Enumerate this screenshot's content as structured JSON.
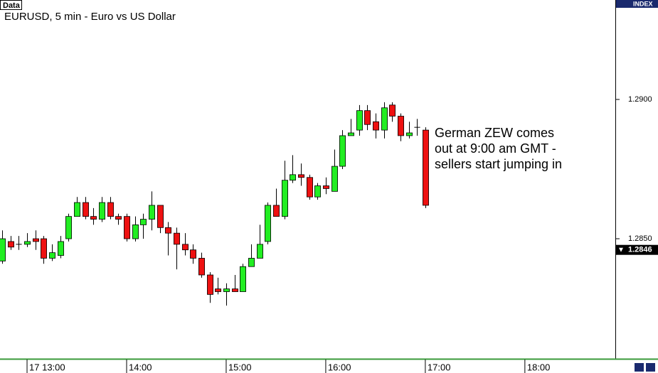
{
  "chart_data": {
    "type": "candlestick",
    "title": "EURUSD, 5 min - Euro vs US Dollar",
    "panel_label": "Data",
    "index_label": "INDEX",
    "annotation": [
      "German ZEW comes",
      "out at 9:00 am GMT -",
      "sellers start jumping in"
    ],
    "up_color": "#22ee22",
    "down_color": "#ee1111",
    "open": [
      1.2842,
      1.2849,
      1.2848,
      1.2848,
      1.285,
      1.285,
      1.2843,
      1.2844,
      1.285,
      1.2858,
      1.2863,
      1.2858,
      1.2857,
      1.2863,
      1.2858,
      1.2858,
      1.285,
      1.2855,
      1.2857,
      1.2862,
      1.2854,
      1.2852,
      1.2848,
      1.2846,
      1.2843,
      1.2837,
      1.2832,
      1.2831,
      1.2832,
      1.2831,
      1.284,
      1.2843,
      1.2849,
      1.2862,
      1.2858,
      1.2871,
      1.2873,
      1.2872,
      1.2865,
      1.2869,
      1.2867,
      1.2876,
      1.2887,
      1.2889,
      1.2896,
      1.2892,
      1.2889,
      1.2898,
      1.2894,
      1.2887,
      1.289,
      1.2889
    ],
    "high": [
      1.2853,
      1.2851,
      1.2851,
      1.2852,
      1.2853,
      1.2851,
      1.2848,
      1.2851,
      1.2859,
      1.2865,
      1.2865,
      1.2861,
      1.2865,
      1.2865,
      1.2859,
      1.2859,
      1.2858,
      1.2859,
      1.2867,
      1.2862,
      1.2856,
      1.2854,
      1.2852,
      1.2848,
      1.2845,
      1.2838,
      1.2836,
      1.2834,
      1.2837,
      1.2841,
      1.2848,
      1.2855,
      1.2863,
      1.2868,
      1.2878,
      1.288,
      1.2877,
      1.2873,
      1.287,
      1.2872,
      1.2882,
      1.2889,
      1.2893,
      1.2898,
      1.2898,
      1.2895,
      1.2899,
      1.2899,
      1.2895,
      1.2892,
      1.2893,
      1.289
    ],
    "low": [
      1.2841,
      1.2846,
      1.2846,
      1.2847,
      1.2846,
      1.2841,
      1.2842,
      1.2843,
      1.2849,
      1.2858,
      1.2857,
      1.2855,
      1.2856,
      1.2857,
      1.2855,
      1.2849,
      1.2849,
      1.285,
      1.2853,
      1.2852,
      1.2844,
      1.2839,
      1.2844,
      1.2841,
      1.2836,
      1.2827,
      1.283,
      1.2826,
      1.2831,
      1.2831,
      1.284,
      1.2843,
      1.2848,
      1.2858,
      1.2857,
      1.287,
      1.2869,
      1.2864,
      1.2864,
      1.2866,
      1.2867,
      1.2875,
      1.2887,
      1.2887,
      1.2889,
      1.2886,
      1.2886,
      1.2892,
      1.2885,
      1.2886,
      1.2887,
      1.2861
    ],
    "close": [
      1.285,
      1.2847,
      1.2848,
      1.2849,
      1.2849,
      1.2843,
      1.2845,
      1.2849,
      1.2858,
      1.2863,
      1.2858,
      1.2857,
      1.2863,
      1.2858,
      1.2857,
      1.285,
      1.2855,
      1.2857,
      1.2862,
      1.2854,
      1.2852,
      1.2848,
      1.2846,
      1.2843,
      1.2837,
      1.283,
      1.2831,
      1.2832,
      1.2831,
      1.284,
      1.2843,
      1.2848,
      1.2862,
      1.2858,
      1.2871,
      1.2873,
      1.2872,
      1.2865,
      1.2869,
      1.2868,
      1.2876,
      1.2887,
      1.2888,
      1.2896,
      1.2891,
      1.2889,
      1.2897,
      1.2894,
      1.2887,
      1.2888,
      1.289,
      1.2862
    ],
    "xlim": [
      -0.26,
      73.9
    ],
    "ylim": [
      1.28069,
      1.29357
    ],
    "xticks": [
      {
        "value": 3,
        "label": "17 13:00"
      },
      {
        "value": 15,
        "label": "14:00"
      },
      {
        "value": 27,
        "label": "15:00"
      },
      {
        "value": 39,
        "label": "16:00"
      },
      {
        "value": 51,
        "label": "17:00"
      },
      {
        "value": 63,
        "label": "18:00"
      }
    ],
    "yticks": [
      {
        "value": 1.29,
        "label": "1.2900"
      },
      {
        "value": 1.285,
        "label": "1.2850"
      }
    ],
    "last_price": {
      "value": 1.2846,
      "label": "1.2846"
    }
  }
}
